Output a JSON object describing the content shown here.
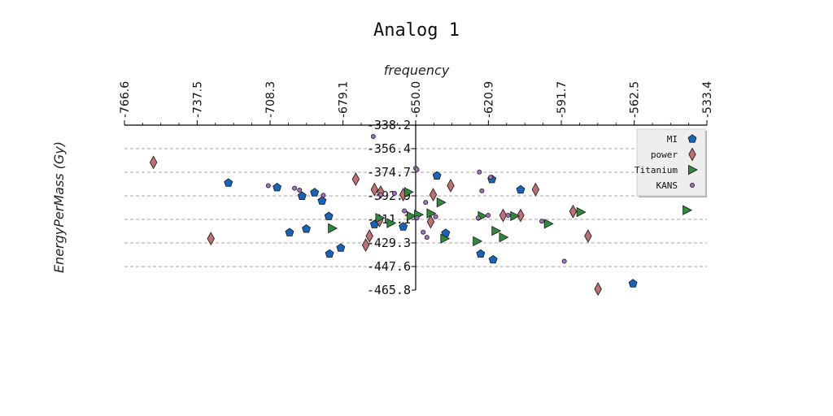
{
  "chart_data": {
    "type": "scatter",
    "title": "Analog 1",
    "xlabel": "frequency",
    "ylabel": "EnergyPerMass (Gy)",
    "xlim": [
      -766.6,
      -533.4
    ],
    "ylim": [
      -465.8,
      -338.2
    ],
    "x_ticks": [
      "-766.6",
      "-737.5",
      "-708.3",
      "-679.1",
      "-650.0",
      "-620.9",
      "-591.7",
      "-562.5",
      "-533.4"
    ],
    "y_ticks": [
      "-338.2",
      "-356.4",
      "-374.7",
      "-392.9",
      "-411.1",
      "-429.3",
      "-447.6",
      "-465.8"
    ],
    "grid": "horizontal-dashed",
    "legend_position": "top-right",
    "series": [
      {
        "name": "MI",
        "marker": "pentagon",
        "color": "#1565C0",
        "points": [
          [
            -725.0,
            -382.9
          ],
          [
            -705.5,
            -386.4
          ],
          [
            -695.5,
            -393.1
          ],
          [
            -690.5,
            -390.4
          ],
          [
            -687.5,
            -396.8
          ],
          [
            -684.8,
            -408.7
          ],
          [
            -700.5,
            -421.3
          ],
          [
            -693.8,
            -418.5
          ],
          [
            -684.5,
            -437.8
          ],
          [
            -680.0,
            -433.2
          ],
          [
            -666.5,
            -415.0
          ],
          [
            -655.0,
            -416.8
          ],
          [
            -641.5,
            -377.4
          ],
          [
            -638.0,
            -421.8
          ],
          [
            -619.5,
            -380.1
          ],
          [
            -624.0,
            -437.8
          ],
          [
            -619.0,
            -442.3
          ],
          [
            -608.0,
            -388.2
          ],
          [
            -563.0,
            -460.8
          ]
        ]
      },
      {
        "name": "power",
        "marker": "diamond",
        "color": "#C07070",
        "points": [
          [
            -755.0,
            -367.0
          ],
          [
            -732.0,
            -426.0
          ],
          [
            -674.0,
            -380.0
          ],
          [
            -666.5,
            -388.0
          ],
          [
            -664.0,
            -390.0
          ],
          [
            -664.5,
            -412.0
          ],
          [
            -668.5,
            -424.0
          ],
          [
            -670.0,
            -431.0
          ],
          [
            -655.0,
            -392.0
          ],
          [
            -643.0,
            -392.0
          ],
          [
            -644.0,
            -413.0
          ],
          [
            -636.0,
            -385.0
          ],
          [
            -615.0,
            -408.0
          ],
          [
            -608.0,
            -408.0
          ],
          [
            -602.0,
            -388.0
          ],
          [
            -587.0,
            -405.0
          ],
          [
            -581.0,
            -424.0
          ],
          [
            -577.0,
            -465.0
          ]
        ]
      },
      {
        "name": "Titanium",
        "marker": "triangle-right",
        "color": "#2E8B3A",
        "points": [
          [
            -683.5,
            -418.0
          ],
          [
            -664.5,
            -410.0
          ],
          [
            -660.0,
            -414.0
          ],
          [
            -652.0,
            -408.5
          ],
          [
            -649.0,
            -407.5
          ],
          [
            -653.0,
            -390.0
          ],
          [
            -644.0,
            -406.5
          ],
          [
            -640.0,
            -398.0
          ],
          [
            -638.5,
            -426.0
          ],
          [
            -623.5,
            -408.5
          ],
          [
            -625.5,
            -428.0
          ],
          [
            -618.0,
            -420.0
          ],
          [
            -615.0,
            -425.0
          ],
          [
            -610.5,
            -408.5
          ],
          [
            -597.0,
            -414.5
          ],
          [
            -584.0,
            -405.5
          ],
          [
            -541.5,
            -404.0
          ]
        ]
      },
      {
        "name": "KANS",
        "marker": "circle",
        "color": "#A070C0",
        "points": [
          [
            -709.0,
            -385.0
          ],
          [
            -698.5,
            -387.0
          ],
          [
            -687.0,
            -392.5
          ],
          [
            -696.5,
            -388.5
          ],
          [
            -667.0,
            -347.0
          ],
          [
            -664.0,
            -392.0
          ],
          [
            -658.5,
            -391.0
          ],
          [
            -650.0,
            -371.5
          ],
          [
            -649.5,
            -410.0
          ],
          [
            -646.0,
            -398.0
          ],
          [
            -647.0,
            -421.0
          ],
          [
            -645.5,
            -425.0
          ],
          [
            -654.5,
            -404.5
          ],
          [
            -649.5,
            -372.5
          ],
          [
            -642.0,
            -409.0
          ],
          [
            -623.5,
            -389.0
          ],
          [
            -624.5,
            -374.5
          ],
          [
            -620.0,
            -378.5
          ],
          [
            -621.0,
            -408.0
          ],
          [
            -613.0,
            -408.0
          ],
          [
            -599.5,
            -412.5
          ],
          [
            -590.5,
            -443.5
          ],
          [
            -625.0,
            -410.0
          ]
        ]
      }
    ]
  }
}
